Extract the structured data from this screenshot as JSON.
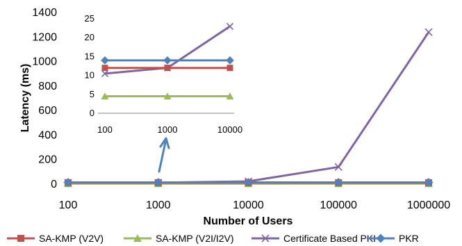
{
  "chart_data": [
    {
      "type": "line",
      "xlabel": "Number of Users",
      "ylabel": "Latency (ms)",
      "x": [
        "100",
        "1000",
        "10000",
        "100000",
        "1000000"
      ],
      "x_scale": "log",
      "ylim": [
        0,
        1400
      ],
      "y_ticks": [
        "0",
        "200",
        "400",
        "600",
        "800",
        "1000",
        "1200",
        "1400"
      ],
      "grid": false,
      "legend_position": "bottom",
      "series": [
        {
          "name": "SA-KMP (V2V)",
          "color": "#c0504d",
          "marker": "square",
          "values": [
            12,
            12,
            12,
            12,
            12
          ]
        },
        {
          "name": "SA-KMP (V2I/I2V)",
          "color": "#9bbb59",
          "marker": "triangle",
          "values": [
            4.5,
            4.5,
            4.5,
            4.5,
            4.5
          ]
        },
        {
          "name": "Certificate Based PKI",
          "color": "#8064a2",
          "marker": "x",
          "values": [
            10.5,
            12,
            23,
            140,
            1240
          ]
        },
        {
          "name": "PKR",
          "color": "#4f81bd",
          "marker": "diamond",
          "values": [
            14,
            14,
            14,
            14,
            14
          ]
        }
      ]
    },
    {
      "type": "line",
      "role": "inset",
      "x": [
        "100",
        "1000",
        "10000"
      ],
      "x_scale": "log",
      "ylim": [
        0,
        25
      ],
      "y_ticks": [
        "0",
        "5",
        "10",
        "15",
        "20",
        "25"
      ],
      "grid": false,
      "series": [
        {
          "name": "SA-KMP (V2V)",
          "color": "#c0504d",
          "marker": "square",
          "values": [
            12,
            12,
            12
          ]
        },
        {
          "name": "SA-KMP (V2I/I2V)",
          "color": "#9bbb59",
          "marker": "triangle",
          "values": [
            4.5,
            4.5,
            4.5
          ]
        },
        {
          "name": "Certificate Based PKI",
          "color": "#8064a2",
          "marker": "x",
          "values": [
            10.5,
            12,
            23
          ]
        },
        {
          "name": "PKR",
          "color": "#4f81bd",
          "marker": "diamond",
          "values": [
            14,
            14,
            14
          ]
        }
      ]
    }
  ]
}
